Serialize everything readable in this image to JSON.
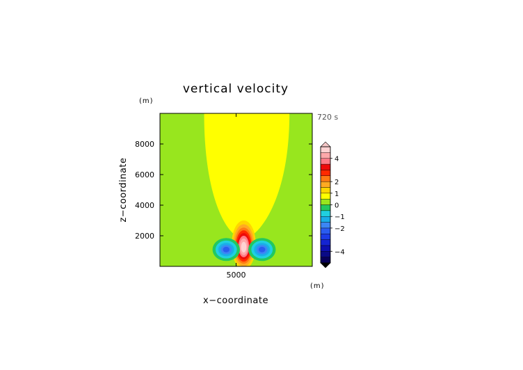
{
  "chart_data": {
    "type": "heatmap",
    "title": "vertical velocity",
    "xlabel": "x−coordinate",
    "ylabel": "z−coordinate",
    "x_unit": "(m)",
    "y_unit": "(m)",
    "time_label": "720 s",
    "xlim": [
      0,
      10000
    ],
    "ylim": [
      0,
      10000
    ],
    "x_ticks": [
      {
        "value": 5000,
        "label": "5000"
      }
    ],
    "y_ticks": [
      {
        "value": 2000,
        "label": "2000"
      },
      {
        "value": 4000,
        "label": "4000"
      },
      {
        "value": 6000,
        "label": "6000"
      },
      {
        "value": 8000,
        "label": "8000"
      }
    ],
    "colorbar": {
      "range": [
        -5,
        5
      ],
      "ticks": [
        {
          "value": 4,
          "label": "4"
        },
        {
          "value": 2,
          "label": "2"
        },
        {
          "value": 1,
          "label": "1"
        },
        {
          "value": 0,
          "label": "0"
        },
        {
          "value": -1,
          "label": "−1"
        },
        {
          "value": -2,
          "label": "−2"
        },
        {
          "value": -4,
          "label": "−4"
        }
      ],
      "levels": [
        {
          "from": -5,
          "to": -4.5,
          "color": "#08005a"
        },
        {
          "from": -4.5,
          "to": -4,
          "color": "#0a0a86"
        },
        {
          "from": -4,
          "to": -3.5,
          "color": "#0d10b0"
        },
        {
          "from": -3.5,
          "to": -3,
          "color": "#1424d2"
        },
        {
          "from": -3,
          "to": -2.5,
          "color": "#1c3ce6"
        },
        {
          "from": -2.5,
          "to": -2,
          "color": "#2a5cf0"
        },
        {
          "from": -2,
          "to": -1.5,
          "color": "#3c86f4"
        },
        {
          "from": -1.5,
          "to": -1,
          "color": "#1aaee8"
        },
        {
          "from": -1,
          "to": -0.5,
          "color": "#20d0e0"
        },
        {
          "from": -0.5,
          "to": 0,
          "color": "#22c860"
        },
        {
          "from": 0,
          "to": 0.5,
          "color": "#98e61e"
        },
        {
          "from": 0.5,
          "to": 1,
          "color": "#ffff00"
        },
        {
          "from": 1,
          "to": 1.5,
          "color": "#ffd600"
        },
        {
          "from": 1.5,
          "to": 2,
          "color": "#ffaa22"
        },
        {
          "from": 2,
          "to": 2.5,
          "color": "#ff7a14"
        },
        {
          "from": 2.5,
          "to": 3,
          "color": "#ff2a00"
        },
        {
          "from": 3,
          "to": 3.5,
          "color": "#ee0a0a"
        },
        {
          "from": 3.5,
          "to": 4,
          "color": "#ff7a86"
        },
        {
          "from": 4,
          "to": 4.5,
          "color": "#ffa8aa"
        },
        {
          "from": 4.5,
          "to": 5,
          "color": "#ffd2d2"
        }
      ],
      "over_color": "#f6c8c8",
      "under_color": "#000000"
    },
    "field": {
      "background_value": 0.25,
      "features": [
        {
          "type": "plume",
          "x_left": 2900,
          "x_right": 8500,
          "z_top": 10000,
          "z_neck": 2000,
          "x_neck_half": 400,
          "value": 0.75
        },
        {
          "type": "updraft_core",
          "x_center": 5500,
          "z_center": 1400,
          "max_value": 5,
          "rx": 800,
          "rz": 1600
        },
        {
          "type": "downdraft",
          "x_center": 4350,
          "z_center": 1100,
          "min_value": -2.5,
          "rx": 900,
          "rz": 750
        },
        {
          "type": "downdraft",
          "x_center": 6700,
          "z_center": 1100,
          "min_value": -2.5,
          "rx": 900,
          "rz": 750
        }
      ]
    }
  }
}
